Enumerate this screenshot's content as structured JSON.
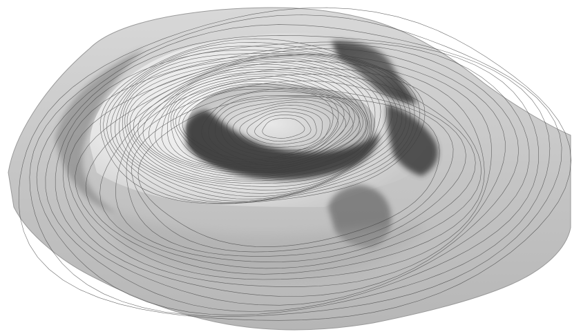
{
  "scene": {
    "background_color": "#ffffff",
    "surface_light": "#e8e8e8",
    "surface_mid": "#b8b8b8",
    "surface_dark": "#4a4a4a",
    "contour_color": "#3c3c3c",
    "features": [
      {
        "name": "outer-rim-plateau"
      },
      {
        "name": "inner-terraced-bowl"
      },
      {
        "name": "central-mound"
      },
      {
        "name": "dark-scarp-north"
      },
      {
        "name": "dark-scarp-east"
      },
      {
        "name": "dark-scarp-inner"
      },
      {
        "name": "breach-channel-southeast"
      }
    ]
  }
}
